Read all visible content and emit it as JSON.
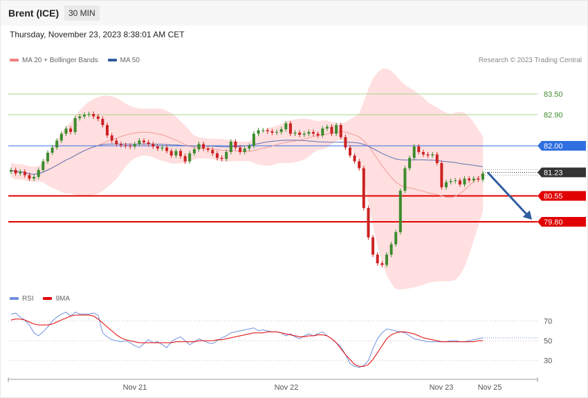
{
  "header": {
    "instrument": "Brent (ICE)",
    "timeframe": "30 MIN",
    "datetime": "Thursday, November 23, 2023 8:38:01 AM CET",
    "credit": "Research © 2023 Trading Central"
  },
  "colors": {
    "bollinger_fill": "#ffd9d9",
    "ma20": "#f29a9a",
    "ma50": "#5b72b8",
    "bull_candle": "#3d8b2e",
    "bear_candle": "#cc2222",
    "resistance_green": "#a7d48a",
    "pivot_blue": "#2f6fe0",
    "support_red": "#e00000",
    "current_price": "#333333",
    "rsi": "#6f8fdc",
    "rsi_ma": "#e00000",
    "arrow": "#2f5da0"
  },
  "legend": {
    "price": [
      {
        "label": "MA 20 + Bollinger Bands",
        "color": "#f08080"
      },
      {
        "label": "MA 50",
        "color": "#2f5da0"
      }
    ],
    "rsi": [
      {
        "label": "RSI",
        "color": "#6f8fdc"
      },
      {
        "label": "9MA",
        "color": "#e00000"
      }
    ]
  },
  "chart_data": [
    {
      "type": "candlestick",
      "title": "Brent (ICE)",
      "timeframe": "30 MIN",
      "x_ticks": [
        "Nov 21",
        "Nov 22",
        "Nov 23",
        "Nov 25"
      ],
      "ylim": [
        78.0,
        84.2
      ],
      "levels": [
        {
          "value": 83.5,
          "label": "83.50",
          "kind": "resistance",
          "color": "#a7d48a"
        },
        {
          "value": 82.9,
          "label": "82.90",
          "kind": "resistance",
          "color": "#a7d48a"
        },
        {
          "value": 82.0,
          "label": "82.00",
          "kind": "pivot",
          "color": "#2f6fe0"
        },
        {
          "value": 81.23,
          "label": "81.23",
          "kind": "current",
          "color": "#333333"
        },
        {
          "value": 80.55,
          "label": "80.55",
          "kind": "support",
          "color": "#e00000"
        },
        {
          "value": 79.8,
          "label": "79.80",
          "kind": "support",
          "color": "#e00000"
        }
      ],
      "closes": [
        81.3,
        81.2,
        81.25,
        81.15,
        81.05,
        81.1,
        81.3,
        81.55,
        81.8,
        81.95,
        82.15,
        82.35,
        82.5,
        82.4,
        82.8,
        82.85,
        82.9,
        82.92,
        82.85,
        82.78,
        82.6,
        82.3,
        82.15,
        82.05,
        82.02,
        82.0,
        81.98,
        82.05,
        82.15,
        82.1,
        82.05,
        81.98,
        81.92,
        81.95,
        81.85,
        81.72,
        81.85,
        81.7,
        81.55,
        81.78,
        81.9,
        82.05,
        81.92,
        81.88,
        81.78,
        81.65,
        81.62,
        81.82,
        82.12,
        81.95,
        81.82,
        81.92,
        82.0,
        82.35,
        82.45,
        82.45,
        82.42,
        82.38,
        82.4,
        82.48,
        82.65,
        82.35,
        82.38,
        82.32,
        82.35,
        82.4,
        82.35,
        82.3,
        82.5,
        82.55,
        82.35,
        82.6,
        82.25,
        81.95,
        81.72,
        81.55,
        81.35,
        80.2,
        79.35,
        78.85,
        78.6,
        78.55,
        78.85,
        79.15,
        79.5,
        80.7,
        81.35,
        81.65,
        81.98,
        81.82,
        81.75,
        81.72,
        81.75,
        81.5,
        80.8,
        80.95,
        80.98,
        81.0,
        80.88,
        81.05,
        81.0,
        81.05,
        81.02,
        81.2
      ]
    },
    {
      "type": "line",
      "title": "RSI",
      "series": [
        {
          "name": "RSI",
          "values": [
            77,
            78,
            74,
            71,
            66,
            58,
            55,
            59,
            64,
            70,
            74,
            77,
            79,
            75,
            79,
            77,
            77,
            77,
            78,
            76,
            58,
            54,
            51,
            50,
            49,
            50,
            48,
            45,
            43,
            47,
            51,
            48,
            49,
            46,
            43,
            49,
            52,
            54,
            50,
            46,
            49,
            52,
            50,
            48,
            47,
            50,
            53,
            55,
            58,
            59,
            60,
            61,
            62,
            63,
            60,
            61,
            60,
            59,
            59,
            58,
            55,
            57,
            54,
            52,
            55,
            57,
            55,
            57,
            59,
            55,
            52,
            48,
            44,
            36,
            27,
            24,
            23,
            25,
            30,
            42,
            52,
            58,
            62,
            61,
            60,
            59,
            58,
            55,
            52,
            51,
            50,
            49,
            49,
            49,
            49,
            49,
            50,
            50,
            49,
            49,
            50,
            51,
            52,
            53
          ]
        },
        {
          "name": "9MA",
          "values": [
            71,
            72,
            72,
            71,
            69,
            67,
            66,
            66,
            66,
            67,
            69,
            71,
            73,
            75,
            76,
            76,
            76,
            76,
            75,
            72,
            68,
            64,
            60,
            56,
            53,
            51,
            50,
            49,
            48,
            48,
            48,
            48,
            48,
            48,
            48,
            48,
            49,
            49,
            49,
            49,
            49,
            50,
            50,
            50,
            50,
            51,
            51,
            52,
            53,
            54,
            55,
            56,
            57,
            58,
            58,
            58,
            59,
            59,
            59,
            58,
            57,
            56,
            55,
            54,
            54,
            55,
            55,
            56,
            56,
            55,
            52,
            48,
            42,
            36,
            31,
            26,
            24,
            24,
            26,
            31,
            38,
            45,
            52,
            56,
            58,
            59,
            59,
            58,
            57,
            55,
            53,
            52,
            51,
            50,
            49,
            49,
            49,
            49,
            49,
            49,
            49,
            49,
            50,
            50
          ]
        }
      ],
      "y_ticks": [
        30,
        50,
        70
      ],
      "ylim": [
        13,
        83
      ]
    }
  ]
}
